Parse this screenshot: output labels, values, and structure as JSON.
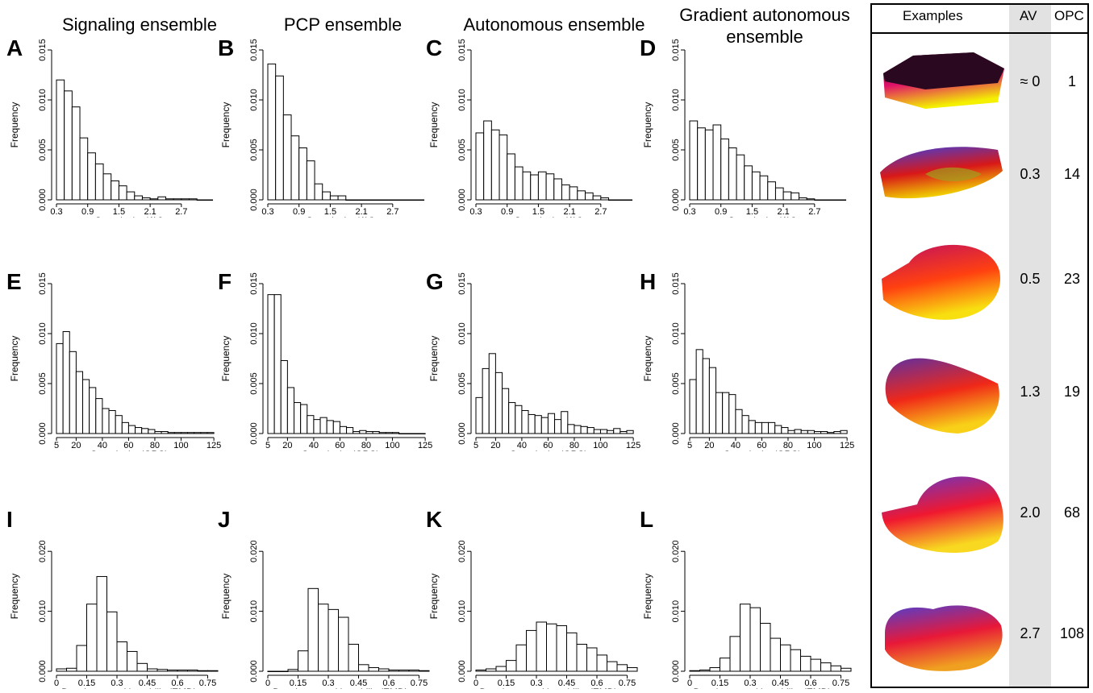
{
  "columns": [
    {
      "title_line1": "Signaling ensemble",
      "title_line2": ""
    },
    {
      "title_line1": "PCP ensemble",
      "title_line2": ""
    },
    {
      "title_line1": "Autonomous ensemble",
      "title_line2": ""
    },
    {
      "title_line1": "Gradient autonomous",
      "title_line2": "ensemble"
    }
  ],
  "examples": {
    "header": "Examples",
    "av_header": "AV",
    "opc_header": "OPC",
    "rows": [
      {
        "av": "≈ 0",
        "opc": "1",
        "colors": [
          "#2a0820",
          "#e0106a",
          "#f4f000"
        ]
      },
      {
        "av": "0.3",
        "opc": "14",
        "colors": [
          "#3a40e0",
          "#d81818",
          "#f0d000"
        ]
      },
      {
        "av": "0.5",
        "opc": "23",
        "colors": [
          "#c01060",
          "#ff4010",
          "#f8e010"
        ]
      },
      {
        "av": "1.3",
        "opc": "19",
        "colors": [
          "#6030a0",
          "#f02818",
          "#f8d018"
        ]
      },
      {
        "av": "2.0",
        "opc": "68",
        "colors": [
          "#6038d0",
          "#f01830",
          "#f8d820"
        ]
      },
      {
        "av": "2.7",
        "opc": "108",
        "colors": [
          "#5040d0",
          "#e81838",
          "#f0a020"
        ]
      }
    ]
  },
  "chart_data": [
    {
      "panel": "A",
      "type": "bar",
      "xlabel": "Complexity (AV)",
      "ylabel": "Frequency",
      "xlim": [
        0.3,
        3.4
      ],
      "ylim": [
        0,
        0.015
      ],
      "xticks": [
        "0.3",
        "0.9",
        "1.5",
        "2.1",
        "2.7"
      ],
      "xtick_values": [
        0.3,
        0.9,
        1.5,
        2.1,
        2.7
      ],
      "yticks": [
        "0.000",
        "0.005",
        "0.010",
        "0.015"
      ],
      "ytick_values": [
        0,
        0.005,
        0.01,
        0.015
      ],
      "bin_start": 0.3,
      "bin_width": 0.15,
      "values": [
        0.012,
        0.0109,
        0.0093,
        0.0062,
        0.0047,
        0.0036,
        0.0026,
        0.0019,
        0.0014,
        0.0008,
        0.0004,
        0.0002,
        0.0001,
        0.0003,
        0.0001,
        0.0001,
        0.0001,
        0.0001,
        0,
        0
      ]
    },
    {
      "panel": "B",
      "type": "bar",
      "xlabel": "Complexity (AV)",
      "ylabel": "Frequency",
      "xlim": [
        0.3,
        3.4
      ],
      "ylim": [
        0,
        0.015
      ],
      "xticks": [
        "0.3",
        "0.9",
        "1.5",
        "2.1",
        "2.7"
      ],
      "xtick_values": [
        0.3,
        0.9,
        1.5,
        2.1,
        2.7
      ],
      "yticks": [
        "0.000",
        "0.005",
        "0.010",
        "0.015"
      ],
      "ytick_values": [
        0,
        0.005,
        0.01,
        0.015
      ],
      "bin_start": 0.3,
      "bin_width": 0.15,
      "values": [
        0.0136,
        0.0124,
        0.0085,
        0.0064,
        0.0052,
        0.0039,
        0.0016,
        0.0008,
        0.0004,
        0.0004,
        0,
        0,
        0,
        0,
        0,
        0,
        0,
        0,
        0,
        0
      ]
    },
    {
      "panel": "C",
      "type": "bar",
      "xlabel": "Complexity (AV)",
      "ylabel": "Frequency",
      "xlim": [
        0.3,
        3.4
      ],
      "ylim": [
        0,
        0.015
      ],
      "xticks": [
        "0.3",
        "0.9",
        "1.5",
        "2.1",
        "2.7"
      ],
      "xtick_values": [
        0.3,
        0.9,
        1.5,
        2.1,
        2.7
      ],
      "yticks": [
        "0.000",
        "0.005",
        "0.010",
        "0.015"
      ],
      "ytick_values": [
        0,
        0.005,
        0.01,
        0.015
      ],
      "bin_start": 0.3,
      "bin_width": 0.15,
      "values": [
        0.0067,
        0.0079,
        0.007,
        0.0065,
        0.0046,
        0.0033,
        0.0028,
        0.0025,
        0.0028,
        0.0026,
        0.0021,
        0.0015,
        0.0013,
        0.0009,
        0.0007,
        0.0004,
        0.0002,
        0,
        0,
        0
      ]
    },
    {
      "panel": "D",
      "type": "bar",
      "xlabel": "Complexity (AV)",
      "ylabel": "Frequency",
      "xlim": [
        0.3,
        3.4
      ],
      "ylim": [
        0,
        0.015
      ],
      "xticks": [
        "0.3",
        "0.9",
        "1.5",
        "2.1",
        "2.7"
      ],
      "xtick_values": [
        0.3,
        0.9,
        1.5,
        2.1,
        2.7
      ],
      "yticks": [
        "0.000",
        "0.005",
        "0.010",
        "0.015"
      ],
      "ytick_values": [
        0,
        0.005,
        0.01,
        0.015
      ],
      "bin_start": 0.3,
      "bin_width": 0.15,
      "values": [
        0.0079,
        0.0072,
        0.007,
        0.0075,
        0.0061,
        0.0052,
        0.0045,
        0.0034,
        0.0028,
        0.0024,
        0.0018,
        0.0012,
        0.0008,
        0.0007,
        0.0002,
        0.0001,
        0,
        0,
        0,
        0
      ]
    },
    {
      "panel": "E",
      "type": "bar",
      "xlabel": "Complexity (OPC)",
      "ylabel": "Frequency",
      "xlim": [
        5,
        128
      ],
      "ylim": [
        0,
        0.015
      ],
      "xticks": [
        "5",
        "20",
        "40",
        "60",
        "80",
        "100",
        "125"
      ],
      "xtick_values": [
        5,
        20,
        40,
        60,
        80,
        100,
        125
      ],
      "yticks": [
        "0.000",
        "0.005",
        "0.010",
        "0.015"
      ],
      "ytick_values": [
        0,
        0.005,
        0.01,
        0.015
      ],
      "bin_start": 5,
      "bin_width": 5,
      "values": [
        0.009,
        0.0102,
        0.0082,
        0.0062,
        0.0054,
        0.0046,
        0.0035,
        0.0025,
        0.0023,
        0.0018,
        0.0011,
        0.0008,
        0.0006,
        0.0005,
        0.0004,
        0.0002,
        0.0002,
        0.0001,
        0.0001,
        0.0001,
        0.0001,
        0.0001,
        0.0001,
        0.0001
      ]
    },
    {
      "panel": "F",
      "type": "bar",
      "xlabel": "Complexity (OPC)",
      "ylabel": "Frequency",
      "xlim": [
        5,
        128
      ],
      "ylim": [
        0,
        0.015
      ],
      "xticks": [
        "5",
        "20",
        "40",
        "60",
        "80",
        "100",
        "125"
      ],
      "xtick_values": [
        5,
        20,
        40,
        60,
        80,
        100,
        125
      ],
      "yticks": [
        "0.000",
        "0.005",
        "0.010",
        "0.015"
      ],
      "ytick_values": [
        0,
        0.005,
        0.01,
        0.015
      ],
      "bin_start": 5,
      "bin_width": 5,
      "values": [
        0.0139,
        0.0139,
        0.0073,
        0.0046,
        0.0031,
        0.0029,
        0.0018,
        0.0014,
        0.0016,
        0.0013,
        0.0012,
        0.0007,
        0.0006,
        0.0002,
        0.0003,
        0.0002,
        0.0002,
        0.0001,
        0.0001,
        0.0001,
        0,
        0,
        0,
        0
      ]
    },
    {
      "panel": "G",
      "type": "bar",
      "xlabel": "Complexity (OPC)",
      "ylabel": "Frequency",
      "xlim": [
        5,
        128
      ],
      "ylim": [
        0,
        0.015
      ],
      "xticks": [
        "5",
        "20",
        "40",
        "60",
        "80",
        "100",
        "125"
      ],
      "xtick_values": [
        5,
        20,
        40,
        60,
        80,
        100,
        125
      ],
      "yticks": [
        "0.000",
        "0.005",
        "0.010",
        "0.015"
      ],
      "ytick_values": [
        0,
        0.005,
        0.01,
        0.015
      ],
      "bin_start": 5,
      "bin_width": 5,
      "values": [
        0.0036,
        0.0065,
        0.008,
        0.0061,
        0.0045,
        0.0031,
        0.0028,
        0.0023,
        0.0019,
        0.0018,
        0.0016,
        0.002,
        0.0014,
        0.0022,
        0.0009,
        0.0008,
        0.0007,
        0.0006,
        0.0004,
        0.0004,
        0.0003,
        0.0005,
        0.0002,
        0.0003
      ]
    },
    {
      "panel": "H",
      "type": "bar",
      "xlabel": "Complexity (OPC)",
      "ylabel": "Frequency",
      "xlim": [
        5,
        128
      ],
      "ylim": [
        0,
        0.015
      ],
      "xticks": [
        "5",
        "20",
        "40",
        "60",
        "80",
        "100",
        "125"
      ],
      "xtick_values": [
        5,
        20,
        40,
        60,
        80,
        100,
        125
      ],
      "yticks": [
        "0.000",
        "0.005",
        "0.010",
        "0.015"
      ],
      "ytick_values": [
        0,
        0.005,
        0.01,
        0.015
      ],
      "bin_start": 5,
      "bin_width": 5,
      "values": [
        0.0054,
        0.0084,
        0.0075,
        0.0066,
        0.0041,
        0.0041,
        0.0039,
        0.0024,
        0.0018,
        0.0013,
        0.0011,
        0.0011,
        0.0011,
        0.0008,
        0.0006,
        0.0003,
        0.0004,
        0.0003,
        0.0003,
        0.0002,
        0.0002,
        0.0001,
        0.0002,
        0.0003
      ]
    },
    {
      "panel": "I",
      "type": "bar",
      "xlabel": "Developmental instability(EMD)",
      "ylabel": "Frequency",
      "xlim": [
        0,
        0.8
      ],
      "ylim": [
        0,
        0.025
      ],
      "xticks": [
        "0",
        "0.15",
        "0.3",
        "0.45",
        "0.6",
        "0.75"
      ],
      "xtick_values": [
        0,
        0.15,
        0.3,
        0.45,
        0.6,
        0.75
      ],
      "yticks": [
        "0.000",
        "0.010",
        "0.020"
      ],
      "ytick_values": [
        0,
        0.01,
        0.02
      ],
      "bin_start": 0,
      "bin_width": 0.05,
      "values": [
        0.0004,
        0.0005,
        0.0043,
        0.0112,
        0.0158,
        0.0099,
        0.0049,
        0.0033,
        0.0013,
        0.0004,
        0.0003,
        0.0002,
        0.0002,
        0.0002,
        0.0001,
        0.0001
      ]
    },
    {
      "panel": "J",
      "type": "bar",
      "xlabel": "Developmental instability(EMD)",
      "ylabel": "Frequency",
      "xlim": [
        0,
        0.8
      ],
      "ylim": [
        0,
        0.025
      ],
      "xticks": [
        "0",
        "0.15",
        "0.3",
        "0.45",
        "0.6",
        "0.75"
      ],
      "xtick_values": [
        0,
        0.15,
        0.3,
        0.45,
        0.6,
        0.75
      ],
      "yticks": [
        "0.000",
        "0.010",
        "0.020"
      ],
      "ytick_values": [
        0,
        0.01,
        0.02
      ],
      "bin_start": 0,
      "bin_width": 0.05,
      "values": [
        0,
        0,
        0.0003,
        0.0034,
        0.0138,
        0.0112,
        0.0103,
        0.009,
        0.0045,
        0.0011,
        0.0006,
        0.0004,
        0.0002,
        0.0002,
        0.0002,
        0.0001
      ]
    },
    {
      "panel": "K",
      "type": "bar",
      "xlabel": "Developmental instability (EMD)",
      "ylabel": "Frequency",
      "xlim": [
        0,
        0.8
      ],
      "ylim": [
        0,
        0.025
      ],
      "xticks": [
        "0",
        "0.15",
        "0.3",
        "0.45",
        "0.6",
        "0.75"
      ],
      "xtick_values": [
        0,
        0.15,
        0.3,
        0.45,
        0.6,
        0.75
      ],
      "yticks": [
        "0.000",
        "0.010",
        "0.020"
      ],
      "ytick_values": [
        0,
        0.01,
        0.02
      ],
      "bin_start": 0,
      "bin_width": 0.05,
      "values": [
        0.0002,
        0.0004,
        0.0008,
        0.0018,
        0.0044,
        0.0068,
        0.0082,
        0.0079,
        0.0076,
        0.0064,
        0.0045,
        0.0039,
        0.0027,
        0.0016,
        0.0011,
        0.0006
      ]
    },
    {
      "panel": "L",
      "type": "bar",
      "xlabel": "Developmental instability (EMD)",
      "ylabel": "Frequency",
      "xlim": [
        0,
        0.8
      ],
      "ylim": [
        0,
        0.025
      ],
      "xticks": [
        "0",
        "0.15",
        "0.3",
        "0.45",
        "0.6",
        "0.75"
      ],
      "xtick_values": [
        0,
        0.15,
        0.3,
        0.45,
        0.6,
        0.75
      ],
      "yticks": [
        "0.000",
        "0.010",
        "0.020"
      ],
      "ytick_values": [
        0,
        0.01,
        0.02
      ],
      "bin_start": 0,
      "bin_width": 0.05,
      "values": [
        0.0001,
        0.0002,
        0.0006,
        0.0022,
        0.0058,
        0.0112,
        0.0106,
        0.008,
        0.0055,
        0.0044,
        0.0036,
        0.0025,
        0.002,
        0.0014,
        0.0009,
        0.0005
      ]
    }
  ]
}
